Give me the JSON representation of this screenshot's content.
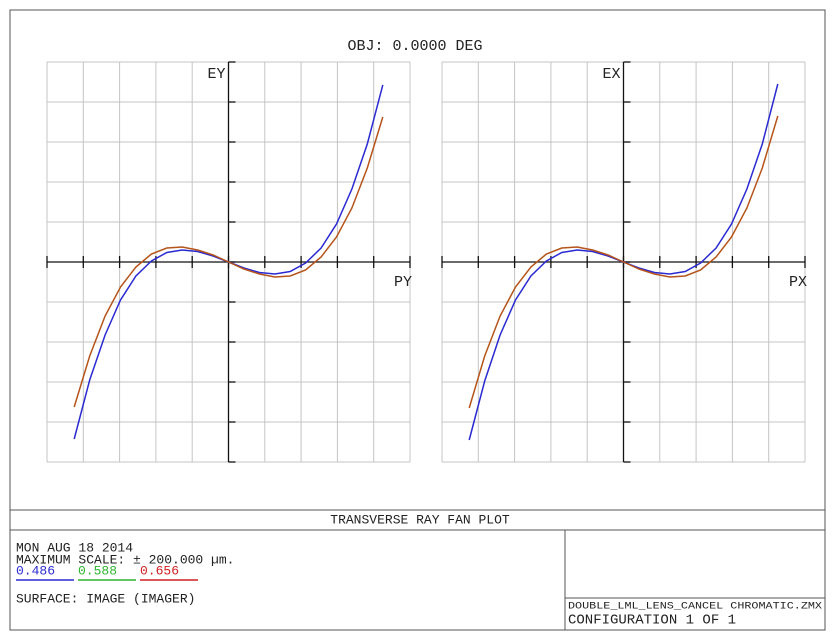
{
  "title": "OBJ: 0.0000 DEG",
  "chart_data": [
    {
      "type": "line",
      "ylabel": "EY",
      "xlabel": "PY",
      "xlim": [
        -1,
        1
      ],
      "ylim": [
        -200,
        200
      ],
      "grid": true,
      "xticks": [
        -1,
        -0.8,
        -0.6,
        -0.4,
        -0.2,
        0,
        0.2,
        0.4,
        0.6,
        0.8,
        1
      ],
      "yticks": [
        -200,
        -160,
        -120,
        -80,
        -40,
        0,
        40,
        80,
        120,
        160,
        200
      ],
      "x": [
        -0.85,
        -0.765,
        -0.68,
        -0.595,
        -0.51,
        -0.425,
        -0.34,
        -0.255,
        -0.17,
        -0.085,
        0,
        0.085,
        0.17,
        0.255,
        0.34,
        0.425,
        0.51,
        0.595,
        0.68,
        0.765,
        0.85
      ],
      "series": [
        {
          "color": "#2a2ad2",
          "values": [
            -177,
            -118,
            -73,
            -38,
            -14,
            1,
            9.5,
            12,
            10.5,
            6,
            0,
            -6,
            -10.5,
            -12,
            -9.5,
            -1,
            14,
            38,
            73,
            118,
            177
          ]
        },
        {
          "color": "#b5541a",
          "values": [
            -145,
            -94,
            -54,
            -25,
            -5,
            8,
            14,
            15,
            12,
            7,
            0,
            -7,
            -12,
            -15,
            -14,
            -8,
            5,
            25,
            54,
            94,
            145
          ]
        }
      ]
    },
    {
      "type": "line",
      "ylabel": "EX",
      "xlabel": "PX",
      "xlim": [
        -1,
        1
      ],
      "ylim": [
        -200,
        200
      ],
      "grid": true,
      "xticks": [
        -1,
        -0.8,
        -0.6,
        -0.4,
        -0.2,
        0,
        0.2,
        0.4,
        0.6,
        0.8,
        1
      ],
      "yticks": [
        -200,
        -160,
        -120,
        -80,
        -40,
        0,
        40,
        80,
        120,
        160,
        200
      ],
      "x": [
        -0.85,
        -0.765,
        -0.68,
        -0.595,
        -0.51,
        -0.425,
        -0.34,
        -0.255,
        -0.17,
        -0.085,
        0,
        0.085,
        0.17,
        0.255,
        0.34,
        0.425,
        0.51,
        0.595,
        0.68,
        0.765,
        0.85
      ],
      "series": [
        {
          "color": "#2a2ad2",
          "values": [
            -178,
            -119,
            -73,
            -38,
            -14,
            1,
            9.5,
            12,
            10.5,
            6,
            0,
            -6,
            -10.5,
            -12,
            -9.5,
            -1,
            14,
            38,
            73,
            118,
            178
          ]
        },
        {
          "color": "#b5541a",
          "values": [
            -146,
            -94,
            -54,
            -25,
            -5,
            8,
            14,
            15,
            12,
            7,
            0,
            -7,
            -12,
            -15,
            -14,
            -8,
            5,
            25,
            54,
            94,
            146
          ]
        }
      ]
    }
  ],
  "footer": {
    "caption": "TRANSVERSE RAY FAN PLOT",
    "date": "MON AUG 18 2014",
    "scale": "MAXIMUM SCALE: ± 200.000 µm.",
    "wavelengths": [
      {
        "label": "0.486",
        "color": "#2a2ad2"
      },
      {
        "label": "0.588",
        "color": "#2db52d"
      },
      {
        "label": "0.656",
        "color": "#d02020"
      }
    ],
    "surface": "SURFACE: IMAGE (IMAGER)",
    "file": "DOUBLE_LML_LENS_CANCEL CHROMATIC.ZMX",
    "config": "CONFIGURATION 1 OF 1"
  }
}
